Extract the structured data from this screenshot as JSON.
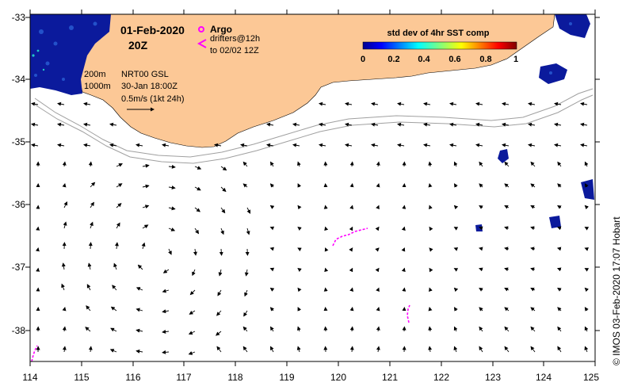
{
  "map": {
    "date": "01-Feb-2020",
    "time": "20Z",
    "argo_label": "Argo",
    "drifters_label": "drifters@12h",
    "drifters_to": "to 02/02 12Z",
    "contour_200": "200m",
    "contour_1000": "1000m",
    "product": "NRT00 GSL",
    "product_time": "30-Jan 18:00Z",
    "scale_label": "0.5m/s (1kt 24h)",
    "colorbar_title": "std dev of 4hr SST comp",
    "colorbar_ticks": [
      "0",
      "0.2",
      "0.4",
      "0.6",
      "0.8",
      "1"
    ],
    "credit": "© IMOS 03-Feb-2020 17:07 Hobart",
    "lon_ticks": [
      "114",
      "115",
      "116",
      "117",
      "118",
      "119",
      "120",
      "121",
      "122",
      "123",
      "124",
      "125"
    ],
    "lat_ticks": [
      "-33",
      "-34",
      "-35",
      "-36",
      "-37",
      "-38"
    ],
    "colors": {
      "land": "#fcc896",
      "ocean": "#ffffff",
      "drifter": "#ff00ff",
      "sst_low": "#0b1a9c",
      "contour": "#a0a0a0"
    }
  }
}
